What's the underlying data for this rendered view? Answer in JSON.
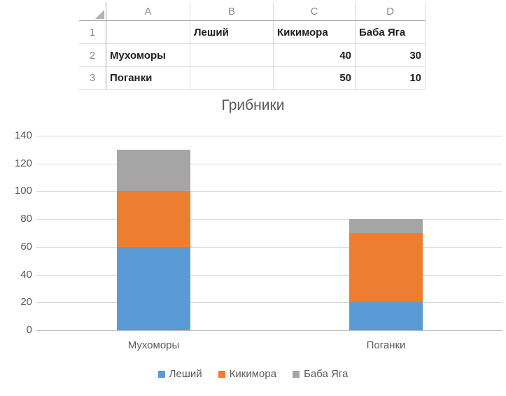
{
  "spreadsheet": {
    "column_headers": [
      "A",
      "B",
      "C",
      "D"
    ],
    "row_headers": [
      "1",
      "2",
      "3"
    ],
    "rows": [
      {
        "cells": [
          "",
          "Леший",
          "Кикимора",
          "Баба Яга"
        ]
      },
      {
        "cells": [
          "Мухоморы",
          "",
          "40",
          "30"
        ]
      },
      {
        "cells": [
          "Поганки",
          "",
          "50",
          "10"
        ]
      }
    ]
  },
  "chart_data": {
    "type": "bar",
    "stacked": true,
    "title": "Грибники",
    "categories": [
      "Мухоморы",
      "Поганки"
    ],
    "series": [
      {
        "name": "Леший",
        "color": "#5B9BD5",
        "values": [
          60,
          20
        ]
      },
      {
        "name": "Кикимора",
        "color": "#ED7D31",
        "values": [
          40,
          50
        ]
      },
      {
        "name": "Баба Яга",
        "color": "#A5A5A5",
        "values": [
          30,
          10
        ]
      }
    ],
    "ylim": [
      0,
      140
    ],
    "yticks": [
      0,
      20,
      40,
      60,
      80,
      100,
      120,
      140
    ],
    "grid": true,
    "legend_position": "bottom",
    "colors": {
      "title_text": "#595959",
      "axis_text": "#595959",
      "gridline": "#D9D9D9",
      "axis_line": "#BFBFBF"
    }
  }
}
